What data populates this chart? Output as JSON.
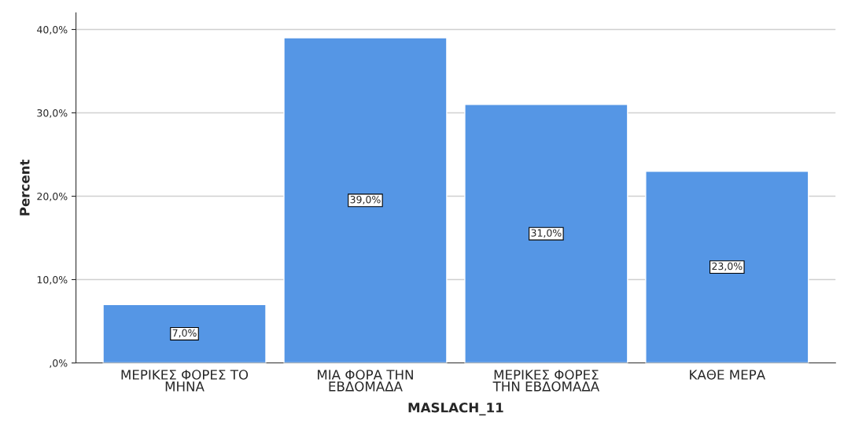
{
  "chart_data": {
    "type": "bar",
    "xlabel": "MASLACH_11",
    "ylabel": "Percent",
    "categories": [
      "ΜΕΡΙΚΕΣ ΦΟΡΕΣ ΤΟ\nΜΗΝΑ",
      "ΜΙΑ ΦΟΡΑ ΤΗΝ\nΕΒΔΟΜΑΔΑ",
      "ΜΕΡΙΚΕΣ ΦΟΡΕΣ\nΤΗΝ ΕΒΔΟΜΑΔΑ",
      "ΚΑΘΕ ΜΕΡΑ"
    ],
    "values": [
      7,
      39,
      31,
      23
    ],
    "value_labels": [
      "7,0%",
      "39,0%",
      "31,0%",
      "23,0%"
    ],
    "color": "#5596e5",
    "ylim": [
      0,
      42
    ],
    "yticks": [
      {
        "value": 0,
        "label": ",0%"
      },
      {
        "value": 10,
        "label": "10,0%"
      },
      {
        "value": 20,
        "label": "20,0%"
      },
      {
        "value": 30,
        "label": "30,0%"
      },
      {
        "value": 40,
        "label": "40,0%"
      }
    ],
    "grid": "y"
  }
}
